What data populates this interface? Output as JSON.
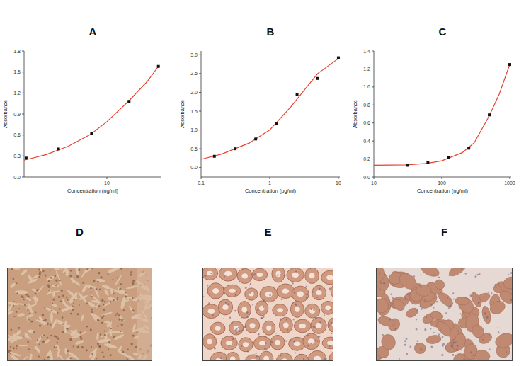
{
  "chart_data": [
    {
      "type": "scatter",
      "title": "A",
      "x_label": "Concentration (ng/ml)",
      "y_label": "Absorbance",
      "log": "x",
      "xlim": [
        0.75,
        55
      ],
      "ylim": [
        0,
        1.8
      ],
      "xticks": [
        10
      ],
      "yticks": [
        {
          "value": 0,
          "label": "0.0"
        },
        0.3,
        0.6,
        0.9,
        1.2,
        1.5,
        1.8
      ],
      "series": [
        {
          "type": "scatter",
          "marker": "square",
          "color": "#111111",
          "x": [
            0.8,
            2.2,
            6.2,
            20,
            50
          ],
          "values": [
            0.27,
            0.4,
            0.62,
            1.08,
            1.58
          ]
        },
        {
          "type": "line",
          "color": "#e8402e",
          "line_style": "solid",
          "x": [
            0.75,
            1.5,
            3,
            6,
            10,
            20,
            35,
            50
          ],
          "values": [
            0.24,
            0.32,
            0.44,
            0.61,
            0.79,
            1.09,
            1.36,
            1.58
          ]
        }
      ]
    },
    {
      "type": "scatter",
      "title": "B",
      "x_label": "Concentration (pg/ml)",
      "y_label": "Absorbance",
      "log": "x",
      "xlim": [
        0.1,
        10.5
      ],
      "ylim": [
        -0.25,
        3.1
      ],
      "xticks": [
        0.1,
        1,
        10
      ],
      "yticks": [
        {
          "value": 0,
          "label": "0.0"
        },
        0.5,
        {
          "value": 1,
          "label": "1.0"
        },
        1.5,
        {
          "value": 2,
          "label": "2.0"
        },
        2.5,
        {
          "value": 3,
          "label": "3.0"
        }
      ],
      "series": [
        {
          "type": "scatter",
          "marker": "square",
          "color": "#111111",
          "x": [
            0.156,
            0.3125,
            0.625,
            1.25,
            2.5,
            5,
            10
          ],
          "values": [
            0.3,
            0.5,
            0.76,
            1.16,
            1.95,
            2.37,
            2.92
          ]
        },
        {
          "type": "line",
          "color": "#e8402e",
          "line_style": "solid",
          "x": [
            0.1,
            0.2,
            0.5,
            1,
            2,
            3,
            5,
            10
          ],
          "values": [
            0.22,
            0.36,
            0.65,
            1.0,
            1.6,
            2.0,
            2.5,
            2.9
          ]
        }
      ]
    },
    {
      "type": "scatter",
      "title": "C",
      "x_label": "Concentration (ng/ml)",
      "y_label": "Absorbance",
      "log": "x",
      "xlim": [
        10,
        1050
      ],
      "ylim": [
        0,
        1.4
      ],
      "xticks": [
        10,
        100,
        1000
      ],
      "yticks": [
        {
          "value": 0,
          "label": "0.0"
        },
        0.2,
        0.4,
        0.6,
        0.8,
        {
          "value": 1,
          "label": "1.0"
        },
        1.2,
        1.4
      ],
      "series": [
        {
          "type": "scatter",
          "marker": "square",
          "color": "#111111",
          "x": [
            31.25,
            62.5,
            125,
            250,
            500,
            1000
          ],
          "values": [
            0.13,
            0.16,
            0.22,
            0.32,
            0.69,
            1.25
          ]
        },
        {
          "type": "line",
          "color": "#e8402e",
          "line_style": "solid",
          "x": [
            10,
            30,
            60,
            100,
            200,
            300,
            500,
            700,
            1000
          ],
          "values": [
            0.13,
            0.135,
            0.15,
            0.18,
            0.27,
            0.38,
            0.68,
            0.92,
            1.25
          ]
        }
      ]
    }
  ],
  "images": [
    {
      "label": "D"
    },
    {
      "label": "E"
    },
    {
      "label": "F"
    }
  ]
}
